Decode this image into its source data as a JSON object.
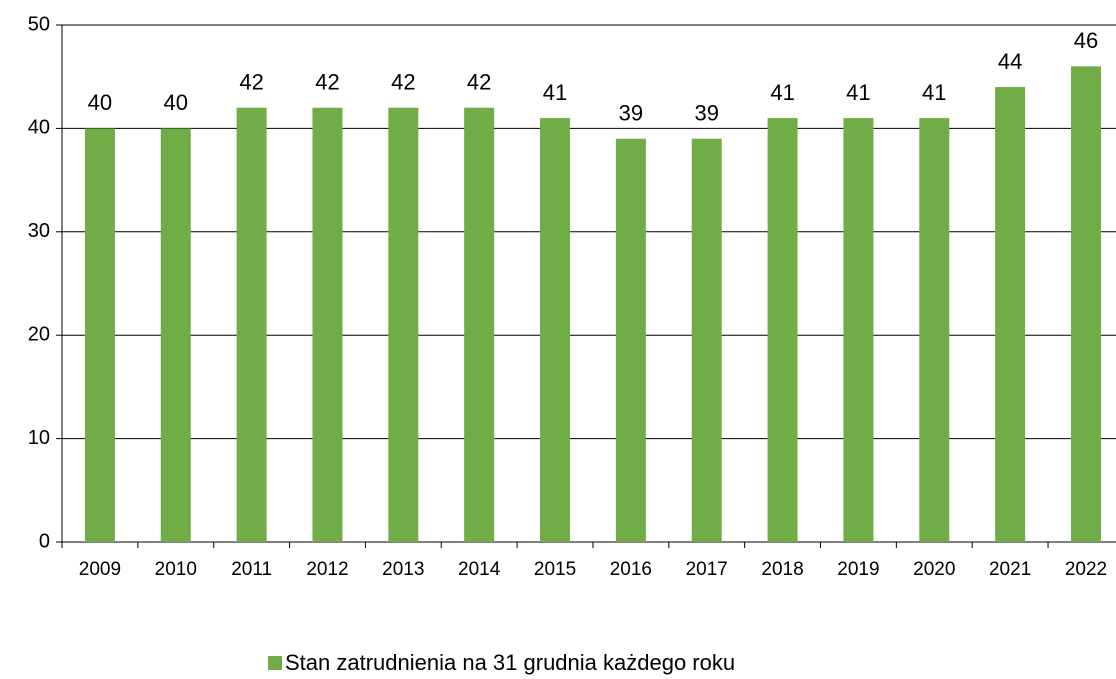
{
  "chart_data": {
    "type": "bar",
    "categories": [
      "2009",
      "2010",
      "2011",
      "2012",
      "2013",
      "2014",
      "2015",
      "2016",
      "2017",
      "2018",
      "2019",
      "2020",
      "2021",
      "2022"
    ],
    "series": [
      {
        "name": "Stan zatrudnienia na 31 grudnia każdego roku",
        "color": "#70ad47",
        "values": [
          40,
          40,
          42,
          42,
          42,
          42,
          41,
          39,
          39,
          41,
          41,
          41,
          44,
          46
        ]
      }
    ],
    "ylim": [
      0,
      50
    ],
    "yticks": [
      0,
      10,
      20,
      30,
      40,
      50
    ],
    "grid": true,
    "legend": "bottom",
    "data_labels": true
  }
}
